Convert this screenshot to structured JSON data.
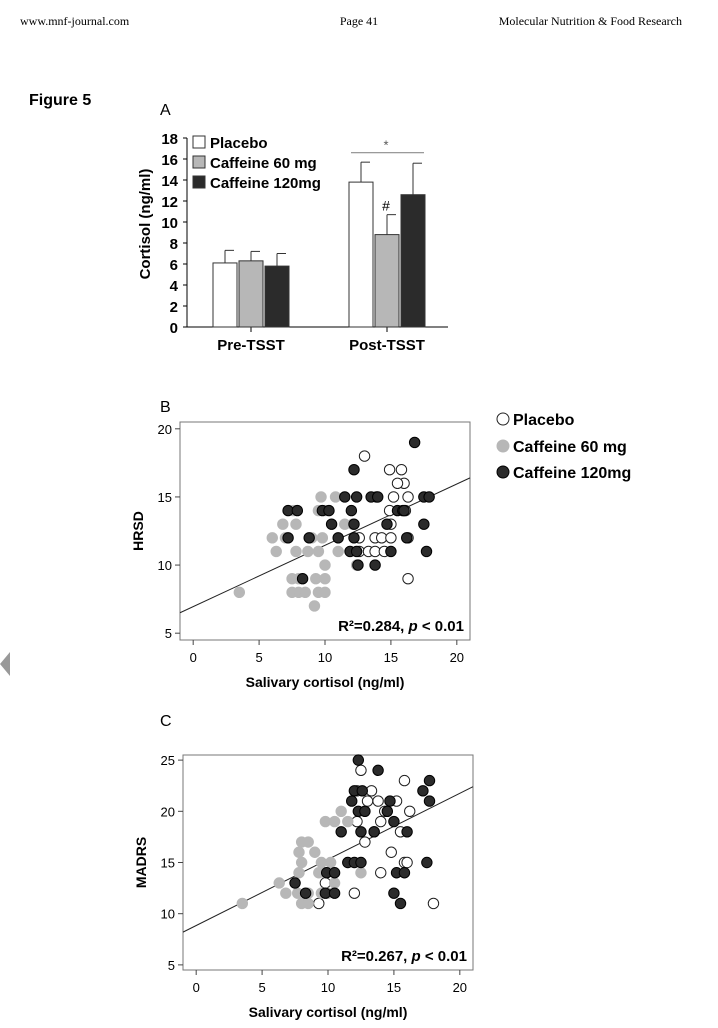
{
  "header": {
    "left": "www.mnf-journal.com",
    "center": "Page 41",
    "right": "Molecular Nutrition & Food Research"
  },
  "figure_title": "Figure 5",
  "colors": {
    "placebo": "#ffffff",
    "caffeine60": "#b7b7b7",
    "caffeine120": "#2b2b2b",
    "axis": "#000000",
    "sig_line": "#8c8c8c"
  },
  "chart_data": [
    {
      "panel": "A",
      "type": "bar",
      "ylabel": "Cortisol (ng/ml)",
      "ylim": [
        0,
        18
      ],
      "yticks": [
        0,
        2,
        4,
        6,
        8,
        10,
        12,
        14,
        16,
        18
      ],
      "categories": [
        "Pre-TSST",
        "Post-TSST"
      ],
      "series": [
        {
          "name": "Placebo",
          "values": [
            6.1,
            13.8
          ],
          "errors": [
            1.2,
            1.9
          ]
        },
        {
          "name": "Caffeine 60 mg",
          "values": [
            6.3,
            8.8
          ],
          "errors": [
            0.9,
            1.9
          ]
        },
        {
          "name": "Caffeine 120mg",
          "values": [
            5.8,
            12.6
          ],
          "errors": [
            1.2,
            3.0
          ]
        }
      ],
      "annotations": {
        "star": "*",
        "hash": "#"
      }
    },
    {
      "panel": "B",
      "type": "scatter",
      "xlabel": "Salivary cortisol (ng/ml)",
      "ylabel": "HRSD",
      "xlim": [
        -1,
        21
      ],
      "ylim": [
        4.5,
        20.5
      ],
      "xticks": [
        0,
        5,
        10,
        15,
        20
      ],
      "yticks": [
        5,
        10,
        15,
        20
      ],
      "fit": {
        "x": [
          -1,
          21
        ],
        "y": [
          6.5,
          16.4
        ]
      },
      "annotation": {
        "r2": "R²=0.284, ",
        "p": "p",
        "rest": " < 0.01"
      },
      "legend": [
        "Placebo",
        "Caffeine 60 mg",
        "Caffeine 120mg"
      ],
      "series": [
        {
          "name": "Placebo",
          "points": [
            [
              13.0,
              18
            ],
            [
              14.9,
              17
            ],
            [
              15.8,
              17
            ],
            [
              16.0,
              16
            ],
            [
              15.5,
              16
            ],
            [
              13.9,
              15
            ],
            [
              15.2,
              15
            ],
            [
              16.3,
              15
            ],
            [
              16.1,
              14
            ],
            [
              14.9,
              14
            ],
            [
              12.6,
              12
            ],
            [
              13.8,
              12
            ],
            [
              14.3,
              12
            ],
            [
              15.0,
              12
            ],
            [
              16.3,
              12
            ],
            [
              12.6,
              11
            ],
            [
              13.3,
              11
            ],
            [
              13.8,
              11
            ],
            [
              14.5,
              11
            ],
            [
              15.0,
              13
            ],
            [
              16.3,
              9
            ]
          ]
        },
        {
          "name": "Caffeine 60 mg",
          "points": [
            [
              3.5,
              8
            ],
            [
              7.5,
              8
            ],
            [
              8.0,
              8
            ],
            [
              8.5,
              8
            ],
            [
              9.5,
              8
            ],
            [
              10.0,
              8
            ],
            [
              9.2,
              7
            ],
            [
              7.5,
              9
            ],
            [
              8.0,
              9
            ],
            [
              9.3,
              9
            ],
            [
              10.0,
              9
            ],
            [
              6.3,
              11
            ],
            [
              7.8,
              11
            ],
            [
              8.7,
              11
            ],
            [
              9.5,
              11
            ],
            [
              11.0,
              11
            ],
            [
              12.4,
              10
            ],
            [
              10.0,
              10
            ],
            [
              6.0,
              12
            ],
            [
              7.0,
              12
            ],
            [
              9.0,
              12
            ],
            [
              9.8,
              12
            ],
            [
              6.8,
              13
            ],
            [
              7.8,
              13
            ],
            [
              11.5,
              13
            ],
            [
              9.5,
              14
            ],
            [
              10.0,
              14
            ],
            [
              12.1,
              13
            ],
            [
              9.7,
              15
            ],
            [
              7.6,
              14
            ],
            [
              10.8,
              15
            ]
          ]
        },
        {
          "name": "Caffeine 120mg",
          "points": [
            [
              16.8,
              19
            ],
            [
              12.2,
              17
            ],
            [
              11.5,
              15
            ],
            [
              12.4,
              15
            ],
            [
              13.5,
              15
            ],
            [
              14.0,
              15
            ],
            [
              17.5,
              15
            ],
            [
              17.9,
              15
            ],
            [
              7.2,
              14
            ],
            [
              7.9,
              14
            ],
            [
              9.8,
              14
            ],
            [
              10.3,
              14
            ],
            [
              12.0,
              14
            ],
            [
              15.5,
              14
            ],
            [
              15.9,
              14
            ],
            [
              16.0,
              14
            ],
            [
              10.5,
              13
            ],
            [
              12.2,
              13
            ],
            [
              14.7,
              13
            ],
            [
              17.5,
              13
            ],
            [
              7.2,
              12
            ],
            [
              8.8,
              12
            ],
            [
              12.2,
              12
            ],
            [
              11.0,
              12
            ],
            [
              16.2,
              12
            ],
            [
              11.9,
              11
            ],
            [
              12.4,
              11
            ],
            [
              15.0,
              11
            ],
            [
              17.7,
              11
            ],
            [
              12.5,
              10
            ],
            [
              13.8,
              10
            ],
            [
              8.3,
              9
            ]
          ]
        }
      ]
    },
    {
      "panel": "C",
      "type": "scatter",
      "xlabel": "Salivary cortisol (ng/ml)",
      "ylabel": "MADRS",
      "xlim": [
        -1,
        21
      ],
      "ylim": [
        4.5,
        25.5
      ],
      "xticks": [
        0,
        5,
        10,
        15,
        20
      ],
      "yticks": [
        5,
        10,
        15,
        20,
        25
      ],
      "fit": {
        "x": [
          -1,
          21
        ],
        "y": [
          8.2,
          22.4
        ]
      },
      "annotation": {
        "r2": "R²=0.267, ",
        "p": "p",
        "rest": " < 0.01"
      },
      "series": [
        {
          "name": "Placebo",
          "points": [
            [
              15.8,
              23
            ],
            [
              12.5,
              24
            ],
            [
              12.2,
              22
            ],
            [
              13.3,
              22
            ],
            [
              13.0,
              21
            ],
            [
              13.8,
              21
            ],
            [
              15.2,
              21
            ],
            [
              14.3,
              20
            ],
            [
              16.2,
              20
            ],
            [
              12.2,
              19
            ],
            [
              14.0,
              19
            ],
            [
              15.5,
              18
            ],
            [
              13.5,
              18
            ],
            [
              12.8,
              17
            ],
            [
              14.8,
              16
            ],
            [
              15.8,
              15
            ],
            [
              16.0,
              15
            ],
            [
              14.0,
              14
            ],
            [
              9.8,
              13
            ],
            [
              12.0,
              12
            ],
            [
              18.0,
              11
            ],
            [
              9.3,
              11
            ]
          ]
        },
        {
          "name": "Caffeine 60 mg",
          "points": [
            [
              3.5,
              11
            ],
            [
              6.3,
              13
            ],
            [
              6.8,
              12
            ],
            [
              7.5,
              13
            ],
            [
              7.8,
              14
            ],
            [
              8.0,
              15
            ],
            [
              7.8,
              16
            ],
            [
              8.0,
              17
            ],
            [
              8.5,
              17
            ],
            [
              9.0,
              16
            ],
            [
              9.5,
              15
            ],
            [
              10.2,
              15
            ],
            [
              9.3,
              14
            ],
            [
              9.8,
              14
            ],
            [
              10.0,
              12
            ],
            [
              8.0,
              11
            ],
            [
              8.5,
              12
            ],
            [
              9.5,
              12
            ],
            [
              10.5,
              13
            ],
            [
              12.5,
              14
            ],
            [
              9.8,
              19
            ],
            [
              10.5,
              19
            ],
            [
              11.5,
              19
            ],
            [
              11.0,
              20
            ],
            [
              12.8,
              20
            ],
            [
              8.5,
              11
            ],
            [
              7.7,
              12
            ]
          ]
        },
        {
          "name": "Caffeine 120mg",
          "points": [
            [
              12.3,
              25
            ],
            [
              13.8,
              24
            ],
            [
              17.7,
              23
            ],
            [
              17.2,
              22
            ],
            [
              12.0,
              22
            ],
            [
              12.6,
              22
            ],
            [
              11.8,
              21
            ],
            [
              14.7,
              21
            ],
            [
              17.7,
              21
            ],
            [
              12.3,
              20
            ],
            [
              12.8,
              20
            ],
            [
              14.5,
              20
            ],
            [
              11.0,
              18
            ],
            [
              12.5,
              18
            ],
            [
              13.5,
              18
            ],
            [
              15.0,
              19
            ],
            [
              16.0,
              18
            ],
            [
              11.5,
              15
            ],
            [
              12.0,
              15
            ],
            [
              12.5,
              15
            ],
            [
              17.5,
              15
            ],
            [
              9.9,
              14
            ],
            [
              10.5,
              14
            ],
            [
              15.2,
              14
            ],
            [
              15.8,
              14
            ],
            [
              7.5,
              13
            ],
            [
              8.3,
              12
            ],
            [
              9.8,
              12
            ],
            [
              10.5,
              12
            ],
            [
              15.0,
              12
            ],
            [
              15.5,
              11
            ]
          ]
        }
      ]
    }
  ]
}
